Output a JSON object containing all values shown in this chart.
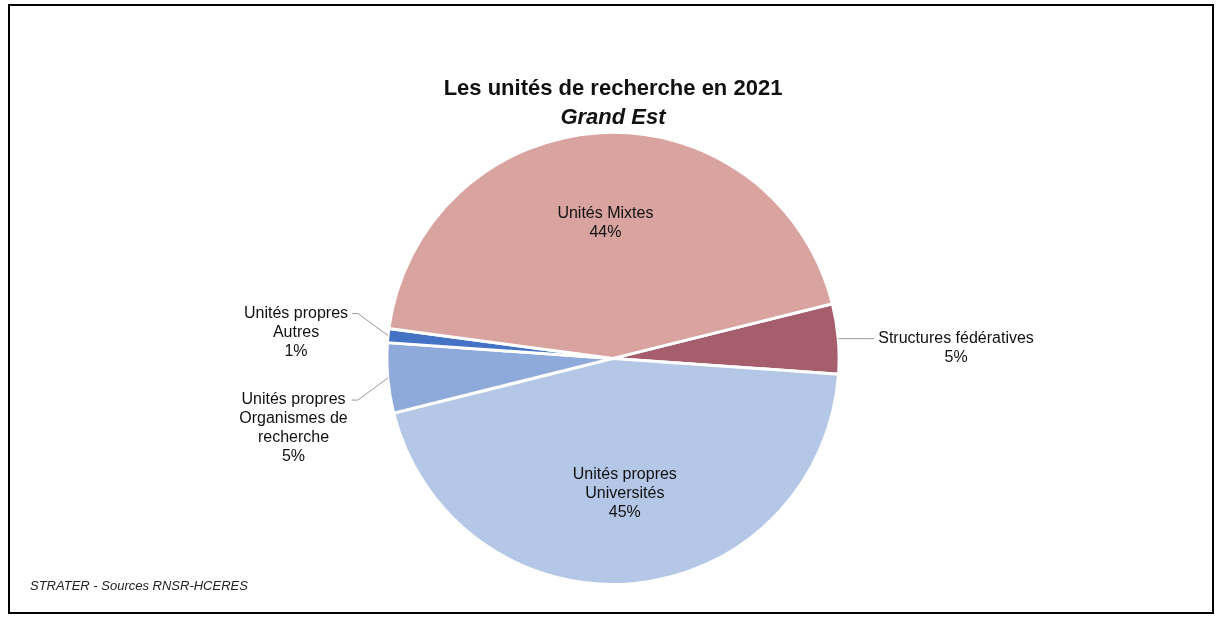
{
  "chart_data": {
    "type": "pie",
    "title": "Les unités de recherche en 2021",
    "subtitle": "Grand Est",
    "categories": [
      "Structures fédératives",
      "Unités propres\nUniversités",
      "Unités propres\nOrganismes de\nrecherche",
      "Unités propres\nAutres",
      "Unités Mixtes"
    ],
    "values": [
      5,
      45,
      5,
      1,
      44
    ],
    "value_labels": [
      "5%",
      "45%",
      "5%",
      "1%",
      "44%"
    ],
    "colors": [
      "#a65e6c",
      "#b4c7e7",
      "#8eaadb",
      "#4472c4",
      "#d9a3a0"
    ],
    "legend": false,
    "annotations": [
      "STRATER - Sources RNSR-HCERES"
    ]
  }
}
